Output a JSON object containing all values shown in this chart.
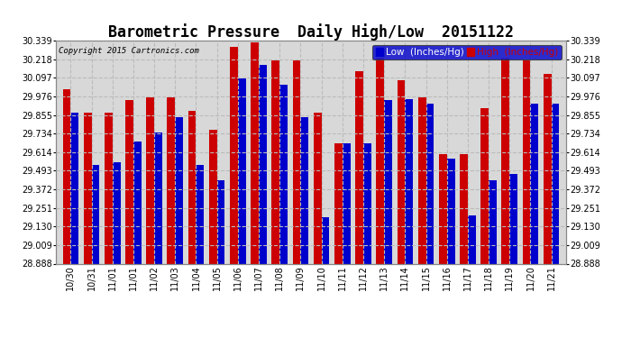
{
  "title": "Barometric Pressure  Daily High/Low  20151122",
  "copyright": "Copyright 2015 Cartronics.com",
  "legend_low": "Low  (Inches/Hg)",
  "legend_high": "High  (Inches/Hg)",
  "low_color": "#0000cc",
  "high_color": "#cc0000",
  "bg_color": "#ffffff",
  "plot_bg_color": "#d8d8d8",
  "ylim": [
    28.888,
    30.339
  ],
  "yticks": [
    28.888,
    29.009,
    29.13,
    29.251,
    29.372,
    29.493,
    29.614,
    29.734,
    29.855,
    29.976,
    30.097,
    30.218,
    30.339
  ],
  "dates": [
    "10/30",
    "10/31",
    "11/01",
    "11/01",
    "11/02",
    "11/03",
    "11/04",
    "11/05",
    "11/06",
    "11/07",
    "11/08",
    "11/09",
    "11/10",
    "11/11",
    "11/12",
    "11/13",
    "11/14",
    "11/15",
    "11/16",
    "11/17",
    "11/18",
    "11/19",
    "11/20",
    "11/21"
  ],
  "low_values": [
    29.87,
    29.53,
    29.55,
    29.68,
    29.74,
    29.84,
    29.53,
    29.43,
    30.09,
    30.18,
    30.05,
    29.84,
    29.19,
    29.67,
    29.67,
    29.95,
    29.96,
    29.93,
    29.57,
    29.2,
    29.43,
    29.47,
    29.93,
    29.93
  ],
  "high_values": [
    30.02,
    29.87,
    29.87,
    29.95,
    29.97,
    29.97,
    29.88,
    29.76,
    30.3,
    30.33,
    30.21,
    30.21,
    29.87,
    29.67,
    30.14,
    30.22,
    30.08,
    29.97,
    29.6,
    29.6,
    29.9,
    30.22,
    30.21,
    30.12
  ],
  "bar_width": 0.38,
  "grid_color": "#bbbbbb",
  "title_fontsize": 12,
  "tick_fontsize": 7,
  "legend_fontsize": 7.5
}
